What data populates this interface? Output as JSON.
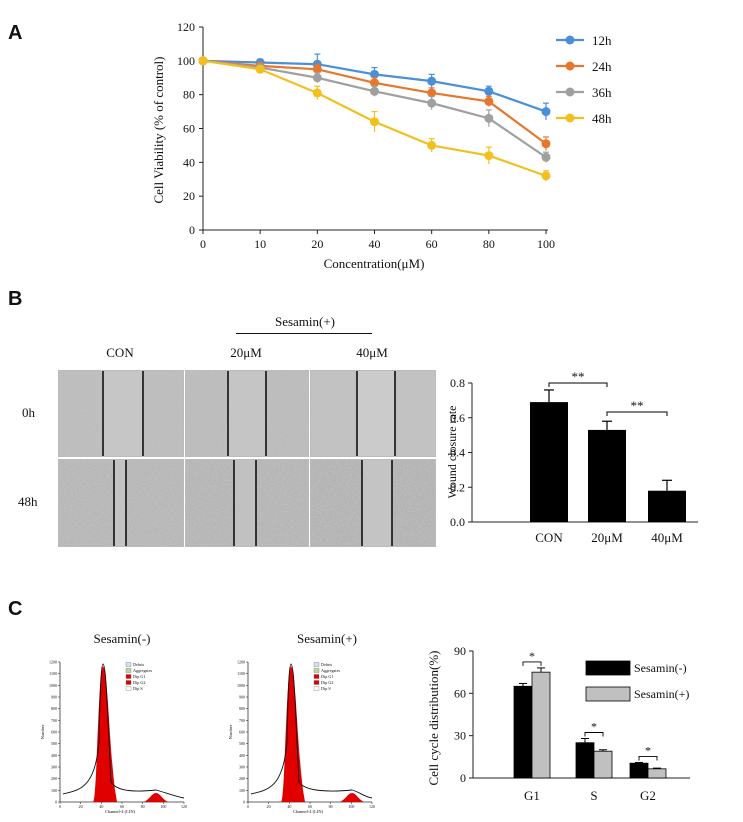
{
  "panels": {
    "a": "A",
    "b": "B",
    "c": "C"
  },
  "panel_a": {
    "ylabel": "Cell Viability (% of control)",
    "xlabel": "Concentration(μM)"
  },
  "panel_b": {
    "treatment_label": "Sesamin(+)",
    "col_labels": [
      "CON",
      "20μM",
      "40μM"
    ],
    "row_labels": [
      "0h",
      "48h"
    ]
  },
  "panel_c": {
    "hist_titles": [
      "Sesamin(-)",
      "Sesamin(+)"
    ],
    "hist_xlabel": "Channel-4 (LIN)",
    "hist_ylabel": "Number",
    "hist_yticks": [
      "0",
      "100",
      "200",
      "300",
      "400",
      "500",
      "600",
      "700",
      "800",
      "900",
      "1000",
      "1100",
      "1200"
    ],
    "hist_xticks": [
      "0",
      "20",
      "40",
      "60",
      "80",
      "100",
      "120"
    ],
    "legends": [
      [
        "Debris",
        "Aggregates",
        "Dip G1",
        "Dip G2",
        "Dip S"
      ],
      [
        "Debris",
        "Aggregates",
        "Dip G1",
        "Dip G2",
        "Dip S"
      ]
    ]
  },
  "colors": {
    "12h": "#4a90d9",
    "24h": "#e8772e",
    "36h": "#a0a0a0",
    "48h": "#f2c01e",
    "bar_black": "#000000",
    "bar_gray": "#c0c0c0",
    "hist_red": "#e00000"
  },
  "chart_data": [
    {
      "id": "viability",
      "type": "line",
      "title": "",
      "xlabel": "Concentration(μM)",
      "ylabel": "Cell Viability (% of control)",
      "x": [
        0,
        10,
        20,
        40,
        60,
        80,
        100
      ],
      "ylim": [
        0,
        120
      ],
      "yticks": [
        0,
        20,
        40,
        60,
        80,
        100,
        120
      ],
      "legend_position": "top-right",
      "series": [
        {
          "name": "12h",
          "color": "#4a90d9",
          "values": [
            100,
            99,
            98,
            92,
            88,
            82,
            70
          ],
          "errors": [
            0,
            2,
            6,
            4,
            4,
            3,
            5
          ]
        },
        {
          "name": "24h",
          "color": "#e8772e",
          "values": [
            100,
            97,
            95,
            87,
            81,
            76,
            51
          ],
          "errors": [
            0,
            2,
            3,
            3,
            3,
            3,
            4
          ]
        },
        {
          "name": "36h",
          "color": "#a0a0a0",
          "values": [
            100,
            96,
            90,
            82,
            75,
            66,
            43
          ],
          "errors": [
            0,
            2,
            3,
            3,
            4,
            5,
            3
          ]
        },
        {
          "name": "48h",
          "color": "#f2c01e",
          "values": [
            100,
            95,
            81,
            64,
            50,
            44,
            32
          ],
          "errors": [
            0,
            2,
            4,
            6,
            4,
            5,
            3
          ]
        }
      ]
    },
    {
      "id": "wound",
      "type": "bar",
      "ylabel": "Wound closure rate",
      "categories": [
        "CON",
        "20μM",
        "40μM"
      ],
      "values": [
        0.69,
        0.53,
        0.18
      ],
      "errors": [
        0.07,
        0.05,
        0.06
      ],
      "ylim": [
        0,
        0.8
      ],
      "yticks": [
        "0.0",
        "0.2",
        "0.4",
        "0.6",
        "0.8"
      ],
      "significance": [
        {
          "from": 0,
          "to": 1,
          "label": "**"
        },
        {
          "from": 1,
          "to": 2,
          "label": "**"
        }
      ]
    },
    {
      "id": "cellcycle",
      "type": "bar",
      "ylabel": "Cell cycle distribution(%)",
      "categories": [
        "G1",
        "S",
        "G2"
      ],
      "ylim": [
        0,
        90
      ],
      "yticks": [
        0,
        30,
        60,
        90
      ],
      "legend_position": "top-right",
      "series": [
        {
          "name": "Sesamin(-)",
          "color": "#000000",
          "values": [
            65,
            25,
            10.5
          ],
          "errors": [
            2,
            3,
            0.5
          ]
        },
        {
          "name": "Sesamin(+)",
          "color": "#c0c0c0",
          "values": [
            75,
            19,
            6.5
          ],
          "errors": [
            3,
            1,
            0.5
          ]
        }
      ],
      "significance": [
        {
          "category": 0,
          "label": "*"
        },
        {
          "category": 1,
          "label": "*"
        },
        {
          "category": 2,
          "label": "*"
        }
      ]
    }
  ]
}
